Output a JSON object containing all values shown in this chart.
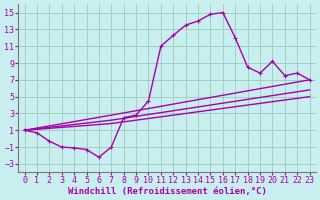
{
  "xlabel": "Windchill (Refroidissement éolien,°C)",
  "xlim": [
    -0.5,
    23.5
  ],
  "ylim": [
    -4,
    16
  ],
  "xticks": [
    0,
    1,
    2,
    3,
    4,
    5,
    6,
    7,
    8,
    9,
    10,
    11,
    12,
    13,
    14,
    15,
    16,
    17,
    18,
    19,
    20,
    21,
    22,
    23
  ],
  "yticks": [
    -3,
    -1,
    1,
    3,
    5,
    7,
    9,
    11,
    13,
    15
  ],
  "bg_color": "#c8eef0",
  "line_color": "#aa00aa",
  "grid_color": "#99ccbb",
  "line1_x": [
    0,
    1,
    2,
    3,
    4,
    5,
    6,
    7,
    8,
    9,
    10,
    11,
    12,
    13,
    14,
    15,
    16,
    17,
    18,
    19,
    20,
    21,
    22,
    23
  ],
  "line1_y": [
    1.0,
    0.7,
    -0.3,
    -1.0,
    -1.1,
    -1.3,
    -2.2,
    -1.0,
    2.5,
    2.8,
    4.5,
    11.0,
    12.3,
    13.5,
    14.0,
    14.8,
    15.0,
    12.0,
    8.5,
    7.8,
    9.2,
    7.5,
    7.8,
    7.0
  ],
  "line2_x": [
    0,
    7,
    23
  ],
  "line2_y": [
    1.0,
    2.8,
    7.0
  ],
  "line3_x": [
    0,
    7,
    23
  ],
  "line3_y": [
    1.0,
    2.2,
    5.8
  ],
  "line4_x": [
    0,
    7,
    23
  ],
  "line4_y": [
    1.0,
    1.8,
    5.0
  ],
  "markersize": 2.5,
  "linewidth": 1.0,
  "xlabel_fontsize": 6.5,
  "tick_fontsize": 6.0
}
